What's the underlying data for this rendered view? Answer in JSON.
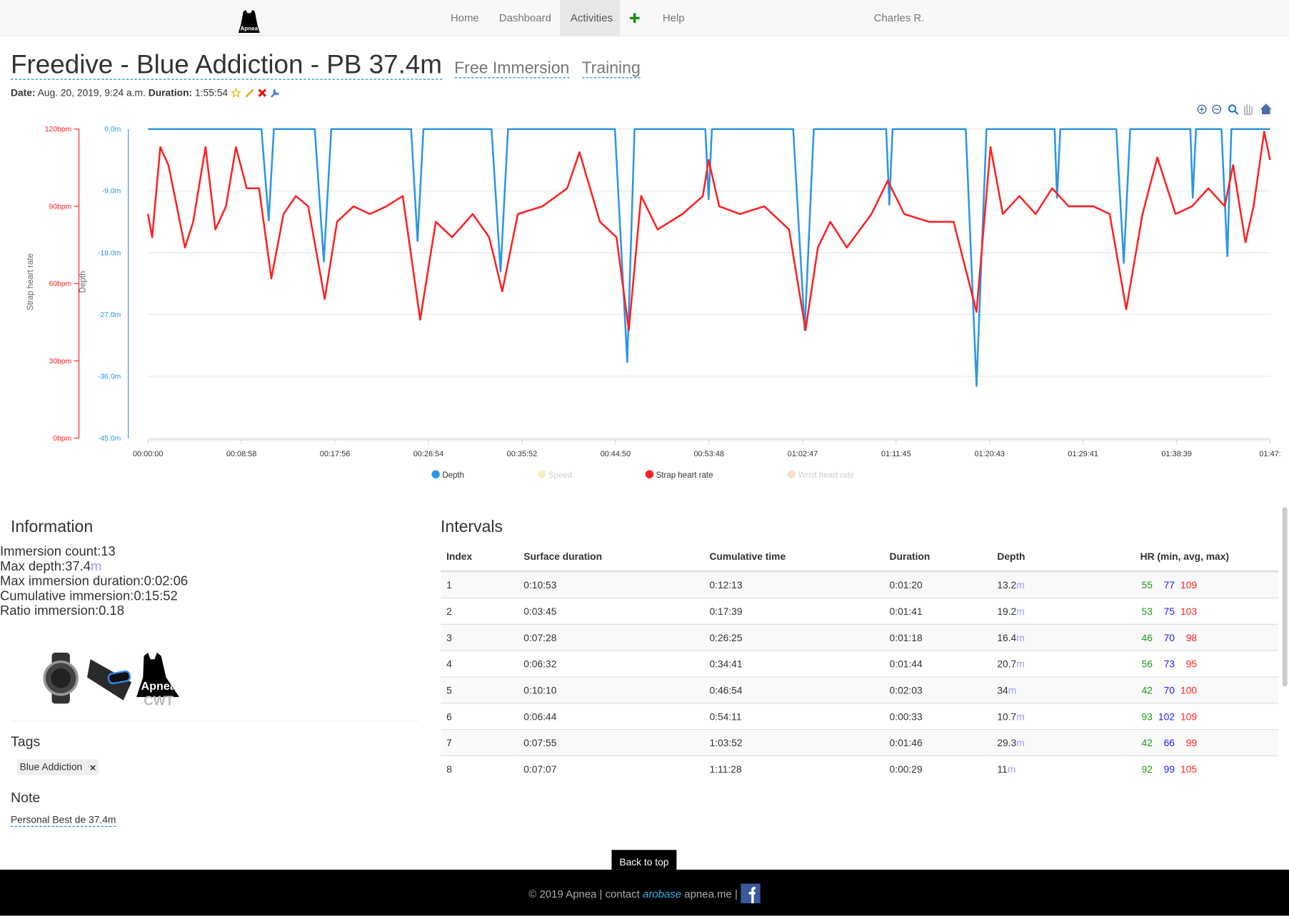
{
  "navbar": {
    "logo_text": "Apnea",
    "links": [
      "Home",
      "Dashboard",
      "Activities",
      "Help"
    ],
    "active": 2,
    "user": "Charles R."
  },
  "header": {
    "title": "Freedive - Blue Addiction - PB 37.4m",
    "discipline": "Free Immersion",
    "kind": "Training",
    "date_label": "Date:",
    "date": "Aug. 20, 2019, 9:24 a.m.",
    "duration_label": "Duration:",
    "duration": "1:55:54"
  },
  "chart_data": {
    "type": "line",
    "x_label": null,
    "y_label": "Depth",
    "y2_label": "Strap heart rate",
    "xlim": [
      0,
      6457
    ],
    "xticks": [
      {
        "value": 0,
        "label": "00:00:00"
      },
      {
        "value": 538,
        "label": "00:08:58"
      },
      {
        "value": 1076,
        "label": "00:17:56"
      },
      {
        "value": 1614,
        "label": "00:26:54"
      },
      {
        "value": 2152,
        "label": "00:35:52"
      },
      {
        "value": 2690,
        "label": "00:44:50"
      },
      {
        "value": 3228,
        "label": "00:53:48"
      },
      {
        "value": 3767,
        "label": "01:02:47"
      },
      {
        "value": 4305,
        "label": "01:11:45"
      },
      {
        "value": 4843,
        "label": "01:20:43"
      },
      {
        "value": 5381,
        "label": "01:29:41"
      },
      {
        "value": 5919,
        "label": "01:38:39"
      },
      {
        "value": 6457,
        "label": "01:47:"
      }
    ],
    "ylim": [
      -45,
      0
    ],
    "yticks": [
      {
        "value": 0,
        "label": "0.0m"
      },
      {
        "value": -9,
        "label": "-9.0m"
      },
      {
        "value": -18,
        "label": "-18.0m"
      },
      {
        "value": -27,
        "label": "-27.0m"
      },
      {
        "value": -36,
        "label": "-36.0m"
      },
      {
        "value": -45,
        "label": "-45.0m"
      }
    ],
    "y2lim": [
      0,
      120
    ],
    "y2ticks": [
      {
        "value": 0,
        "label": "0bpm"
      },
      {
        "value": 30,
        "label": "30bpm"
      },
      {
        "value": 60,
        "label": "60bpm"
      },
      {
        "value": 90,
        "label": "90bpm"
      },
      {
        "value": 120,
        "label": "120bpm"
      }
    ],
    "grid": true,
    "y_color": "#2b95e6",
    "y2_color": "#ff2020",
    "series": [
      {
        "name": "Depth",
        "color": "#2b95e6",
        "axis": "y",
        "visible": true,
        "x": [
          0,
          653,
          695,
          724,
          960,
          1012,
          1055,
          1514,
          1551,
          1585,
          1977,
          2029,
          2072,
          2687,
          2758,
          2800,
          3207,
          3226,
          3245,
          3713,
          3779,
          3831,
          4248,
          4266,
          4285,
          4706,
          4768,
          4825,
          5217,
          5231,
          5250,
          5572,
          5615,
          5652,
          5998,
          6012,
          6031,
          6177,
          6211,
          6234,
          6457
        ],
        "values": [
          0,
          0,
          -13.3,
          0,
          0,
          -19.3,
          0,
          0,
          -16.3,
          0,
          0,
          -20.7,
          0,
          0,
          -33.9,
          0,
          0,
          -10.2,
          0,
          0,
          -29.3,
          0,
          0,
          -11,
          0,
          0,
          -37.4,
          0,
          0,
          -10,
          0,
          0,
          -19.5,
          0,
          0,
          -10,
          0,
          0,
          -18.5,
          0,
          0
        ]
      },
      {
        "name": "Speed",
        "color": "#f8ecc4",
        "axis": "y",
        "visible": false,
        "x": [],
        "values": []
      },
      {
        "name": "Strap heart rate",
        "color": "#ff2020",
        "axis": "y2",
        "visible": true,
        "x": [
          0,
          24,
          71,
          118,
          166,
          213,
          260,
          331,
          388,
          449,
          506,
          568,
          639,
          710,
          780,
          851,
          922,
          1017,
          1088,
          1183,
          1277,
          1372,
          1466,
          1566,
          1656,
          1750,
          1869,
          1963,
          2039,
          2128,
          2270,
          2412,
          2483,
          2601,
          2696,
          2767,
          2838,
          2933,
          3075,
          3193,
          3226,
          3287,
          3406,
          3547,
          3689,
          3784,
          3855,
          3926,
          4021,
          4163,
          4257,
          4352,
          4494,
          4636,
          4768,
          4848,
          4919,
          5014,
          5108,
          5203,
          5298,
          5440,
          5534,
          5629,
          5723,
          5808,
          5913,
          6007,
          6102,
          6196,
          6244,
          6315,
          6362,
          6423,
          6457
        ],
        "values": [
          87,
          78,
          113,
          106,
          90,
          74,
          84,
          113,
          81,
          90,
          113,
          97,
          97,
          62,
          87,
          94,
          90,
          54,
          84,
          90,
          87,
          90,
          94,
          46,
          84,
          78,
          87,
          78,
          57,
          87,
          90,
          97,
          111,
          84,
          78,
          42,
          94,
          81,
          87,
          94,
          108,
          90,
          87,
          90,
          81,
          42,
          74,
          84,
          74,
          87,
          100,
          87,
          84,
          84,
          49,
          113,
          87,
          94,
          87,
          97,
          90,
          90,
          87,
          50,
          87,
          109,
          87,
          90,
          97,
          90,
          106,
          76,
          90,
          119,
          108
        ]
      },
      {
        "name": "Wrist heart rate",
        "color": "#f9e0cc",
        "axis": "y2",
        "visible": false,
        "x": [],
        "values": []
      }
    ]
  },
  "information": {
    "title": "Information",
    "unit": "m",
    "items": [
      {
        "label": "Immersion count:",
        "value": 13
      },
      {
        "label": "Max depth:",
        "value": 37.4,
        "unit": true
      },
      {
        "label": "Max immersion duration:",
        "value": "0:02:06"
      },
      {
        "label": "Cumulative immersion:",
        "value": "0:15:52"
      },
      {
        "label": "Ratio immersion:",
        "value": 0.18
      }
    ],
    "device_text": [
      "Apnea",
      "CWT"
    ]
  },
  "tags": {
    "title": "Tags",
    "items": [
      "Blue Addiction"
    ]
  },
  "note": {
    "title": "Note",
    "text": "Personal Best de 37.4m"
  },
  "intervals": {
    "title": "Intervals",
    "unit": "m",
    "columns": [
      "Index",
      "Surface duration",
      "Cumulative time",
      "Duration",
      "Depth",
      "HR (min, avg, max)"
    ],
    "rows": [
      [
        1,
        "0:10:53",
        "0:12:13",
        "0:01:20",
        13.2,
        55,
        77,
        109
      ],
      [
        2,
        "0:03:45",
        "0:17:39",
        "0:01:41",
        19.2,
        53,
        75,
        103
      ],
      [
        3,
        "0:07:28",
        "0:26:25",
        "0:01:18",
        16.4,
        46,
        70,
        98
      ],
      [
        4,
        "0:06:32",
        "0:34:41",
        "0:01:44",
        20.7,
        56,
        73,
        95
      ],
      [
        5,
        "0:10:10",
        "0:46:54",
        "0:02:03",
        34,
        42,
        70,
        100
      ],
      [
        6,
        "0:06:44",
        "0:54:11",
        "0:00:33",
        10.7,
        93,
        102,
        109
      ],
      [
        7,
        "0:07:55",
        "1:03:52",
        "0:01:46",
        29.3,
        42,
        66,
        99
      ],
      [
        8,
        "0:07:07",
        "1:11:28",
        "0:00:29",
        11,
        92,
        99,
        105
      ]
    ]
  },
  "back_to_top": "Back to top",
  "footer": {
    "text": "© 2019 Apnea | contact",
    "link": "arobase",
    "domain": "apnea.me |"
  }
}
